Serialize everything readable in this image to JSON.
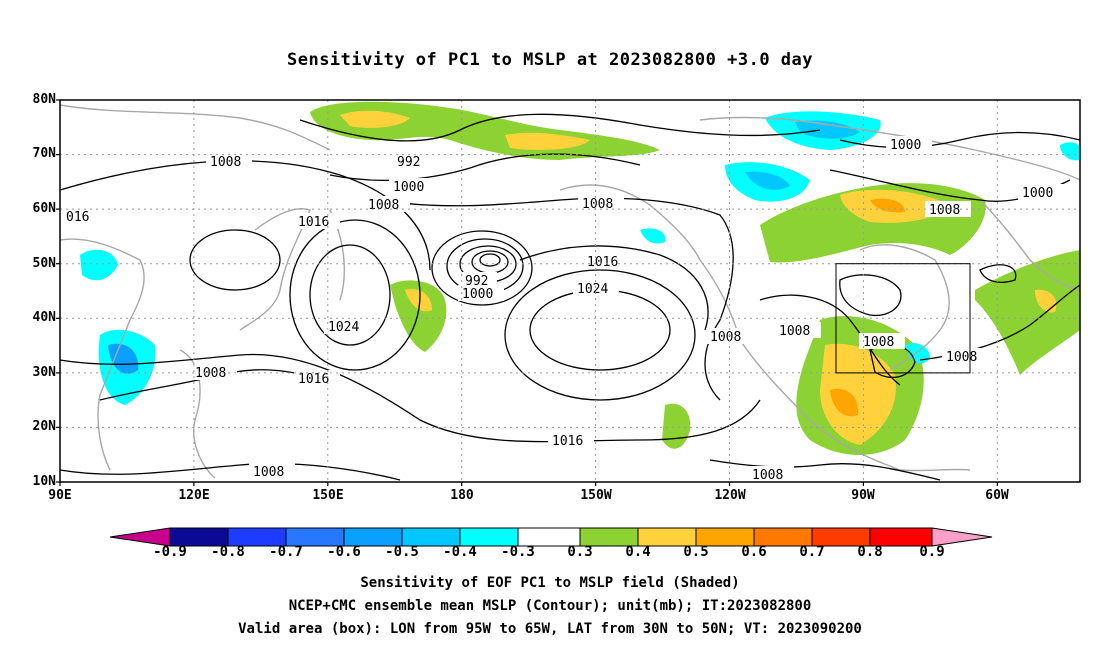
{
  "title": "Sensitivity of PC1 to MSLP at 2023082800 +3.0 day",
  "lat_labels": [
    "80N",
    "70N",
    "60N",
    "50N",
    "40N",
    "30N",
    "20N",
    "10N"
  ],
  "lon_labels": [
    "90E",
    "120E",
    "150E",
    "180",
    "150W",
    "120W",
    "90W",
    "60W"
  ],
  "colorbar": {
    "labels": [
      "-0.9",
      "-0.8",
      "-0.7",
      "-0.6",
      "-0.5",
      "-0.4",
      "-0.3",
      "0.3",
      "0.4",
      "0.5",
      "0.6",
      "0.7",
      "0.8",
      "0.9"
    ],
    "colors": [
      "#c8008c",
      "#0a0a96",
      "#1e3cff",
      "#2878ff",
      "#0aa0ff",
      "#00c8ff",
      "#00ffff",
      "#ffffff",
      "#8cd232",
      "#ffd23c",
      "#ffa500",
      "#ff7800",
      "#ff3c00",
      "#ff0000",
      "#ffa0c8"
    ]
  },
  "contour_labels": {
    "c1008a": "1008",
    "c992a": "992",
    "c1000a": "1000",
    "c1008b": "1008",
    "c016": "016",
    "c1016a": "1016",
    "c1024a": "1024",
    "c992b": "992",
    "c1000b": "1000",
    "c1008c": "1008",
    "c1016b": "1016",
    "c1024b": "1024",
    "c1016c": "1016",
    "c1016d": "1016",
    "c1008d": "1008",
    "c1008e": "1008",
    "c1008f": "1008",
    "c1008g": "1008",
    "c1000c": "1000",
    "c1008h": "1008",
    "c1000d": "1000",
    "c1008i": "1008",
    "c1008j": "1008",
    "c1008k": "1008"
  },
  "captions": {
    "line1": "Sensitivity of EOF PC1 to MSLP field (Shaded)",
    "line2": "NCEP+CMC ensemble mean MSLP (Contour); unit(mb); IT:2023082800",
    "line3": "Valid area (box): LON from 95W to 65W, LAT from 30N to 50N; VT: 2023090200"
  }
}
